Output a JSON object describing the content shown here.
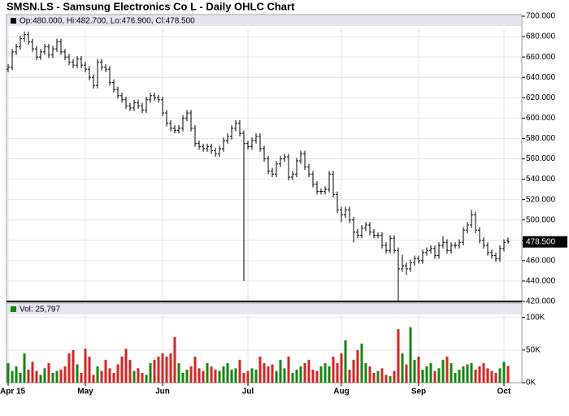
{
  "chart_data": {
    "type": "ohlc",
    "title": "SMSN.LS - Samsung Electronics Co L - Daily OHLC Chart",
    "legend_text": "Op:480.000, Hi:482.700, Lo:476.900, Cl:478.500",
    "categories": [
      "Apr 15",
      null,
      null,
      null,
      null,
      null,
      null,
      null,
      null,
      null,
      null,
      null,
      null,
      null,
      null,
      null,
      null,
      null,
      null,
      "May",
      null,
      null,
      null,
      null,
      null,
      null,
      null,
      null,
      null,
      null,
      null,
      null,
      null,
      null,
      null,
      null,
      null,
      null,
      "Jun",
      null,
      null,
      null,
      null,
      null,
      null,
      null,
      null,
      null,
      null,
      null,
      null,
      null,
      null,
      null,
      null,
      null,
      null,
      null,
      null,
      "Jul",
      null,
      null,
      null,
      null,
      null,
      null,
      null,
      null,
      null,
      null,
      null,
      null,
      null,
      null,
      null,
      null,
      null,
      null,
      null,
      null,
      null,
      null,
      "Aug",
      null,
      null,
      null,
      null,
      null,
      null,
      null,
      null,
      null,
      null,
      null,
      null,
      null,
      null,
      null,
      null,
      null,
      null,
      "Sep",
      null,
      null,
      null,
      null,
      null,
      null,
      null,
      null,
      null,
      null,
      null,
      null,
      null,
      null,
      null,
      null,
      null,
      null,
      null,
      null,
      "Oct",
      null
    ],
    "open": [
      648,
      650,
      665,
      670,
      678,
      682,
      675,
      668,
      660,
      665,
      670,
      662,
      668,
      675,
      665,
      660,
      655,
      652,
      658,
      652,
      648,
      640,
      632,
      655,
      650,
      648,
      635,
      628,
      622,
      618,
      612,
      610,
      615,
      612,
      608,
      618,
      622,
      620,
      618,
      605,
      595,
      590,
      588,
      590,
      600,
      605,
      590,
      575,
      572,
      570,
      572,
      568,
      565,
      570,
      578,
      582,
      590,
      595,
      585,
      575,
      572,
      578,
      582,
      570,
      560,
      548,
      545,
      555,
      560,
      562,
      542,
      545,
      558,
      565,
      552,
      545,
      535,
      528,
      528,
      530,
      545,
      525,
      510,
      505,
      510,
      500,
      488,
      485,
      492,
      495,
      488,
      485,
      485,
      475,
      470,
      482,
      470,
      452,
      455,
      452,
      458,
      462,
      460,
      468,
      470,
      472,
      465,
      475,
      478,
      470,
      475,
      475,
      478,
      490,
      495,
      505,
      490,
      480,
      475,
      468,
      465,
      462,
      472,
      480
    ],
    "high": [
      653,
      668,
      673,
      681,
      685,
      685,
      678,
      671,
      668,
      673,
      673,
      671,
      678,
      678,
      668,
      663,
      658,
      661,
      661,
      655,
      651,
      643,
      658,
      658,
      653,
      651,
      638,
      631,
      625,
      621,
      615,
      618,
      618,
      615,
      621,
      625,
      625,
      623,
      621,
      608,
      598,
      593,
      593,
      603,
      608,
      608,
      593,
      578,
      575,
      575,
      575,
      571,
      573,
      581,
      585,
      593,
      598,
      598,
      588,
      578,
      581,
      585,
      585,
      573,
      563,
      551,
      558,
      563,
      565,
      565,
      548,
      561,
      568,
      568,
      555,
      548,
      538,
      531,
      533,
      548,
      548,
      528,
      513,
      513,
      513,
      503,
      491,
      495,
      498,
      498,
      491,
      488,
      488,
      478,
      485,
      485,
      473,
      466,
      458,
      461,
      465,
      465,
      471,
      473,
      475,
      475,
      478,
      484,
      481,
      478,
      478,
      481,
      493,
      498,
      510,
      508,
      493,
      483,
      478,
      471,
      468,
      475,
      481,
      482.7
    ],
    "low": [
      645,
      647,
      662,
      667,
      675,
      672,
      665,
      657,
      657,
      662,
      659,
      659,
      665,
      662,
      657,
      652,
      649,
      649,
      649,
      645,
      637,
      629,
      629,
      647,
      645,
      632,
      625,
      619,
      615,
      609,
      607,
      607,
      609,
      605,
      605,
      615,
      617,
      615,
      602,
      592,
      587,
      585,
      585,
      587,
      597,
      587,
      572,
      569,
      567,
      567,
      565,
      562,
      562,
      567,
      575,
      579,
      587,
      582,
      440,
      569,
      569,
      575,
      567,
      557,
      545,
      542,
      542,
      552,
      557,
      539,
      539,
      542,
      555,
      549,
      542,
      532,
      525,
      525,
      525,
      527,
      522,
      507,
      498,
      502,
      497,
      478,
      482,
      482,
      489,
      485,
      482,
      482,
      472,
      467,
      467,
      467,
      420,
      449,
      446,
      449,
      455,
      457,
      457,
      465,
      467,
      462,
      462,
      472,
      467,
      467,
      472,
      472,
      475,
      487,
      492,
      487,
      477,
      472,
      465,
      462,
      459,
      459,
      469,
      476.9
    ],
    "close": [
      650,
      665,
      670,
      678,
      682,
      675,
      668,
      660,
      665,
      670,
      662,
      668,
      675,
      665,
      660,
      655,
      652,
      658,
      652,
      648,
      640,
      632,
      655,
      650,
      648,
      635,
      628,
      622,
      618,
      612,
      610,
      615,
      612,
      608,
      618,
      622,
      620,
      618,
      605,
      595,
      590,
      588,
      590,
      600,
      605,
      590,
      575,
      572,
      570,
      572,
      568,
      565,
      570,
      578,
      582,
      590,
      595,
      585,
      575,
      572,
      578,
      582,
      570,
      560,
      548,
      545,
      555,
      560,
      562,
      542,
      545,
      558,
      565,
      552,
      545,
      535,
      528,
      528,
      530,
      545,
      525,
      510,
      505,
      510,
      500,
      488,
      485,
      492,
      495,
      488,
      485,
      485,
      475,
      470,
      482,
      470,
      452,
      455,
      452,
      458,
      462,
      460,
      468,
      470,
      472,
      465,
      475,
      478,
      470,
      475,
      475,
      478,
      490,
      495,
      505,
      490,
      480,
      475,
      468,
      465,
      462,
      472,
      478,
      478.5
    ],
    "color": "#000000",
    "ylim": [
      420,
      700
    ],
    "yticks": [
      {
        "value": 420,
        "label": "420.000"
      },
      {
        "value": 440,
        "label": "440.000"
      },
      {
        "value": 460,
        "label": "460.000"
      },
      {
        "value": 480,
        "label": "480.000"
      },
      {
        "value": 500,
        "label": "500.000"
      },
      {
        "value": 520,
        "label": "520.000"
      },
      {
        "value": 540,
        "label": "540.000"
      },
      {
        "value": 560,
        "label": "560.000"
      },
      {
        "value": 580,
        "label": "580.000"
      },
      {
        "value": 600,
        "label": "600.000"
      },
      {
        "value": 620,
        "label": "620.000"
      },
      {
        "value": 640,
        "label": "640.000"
      },
      {
        "value": 660,
        "label": "660.000"
      },
      {
        "value": 680,
        "label": "680.000"
      },
      {
        "value": 700,
        "label": "700.000"
      }
    ],
    "last_label": {
      "value": 478.5,
      "label": "478.500"
    },
    "grid": true,
    "volume": {
      "label": "Vol: 25,797",
      "up_color": "#118811",
      "down_color": "#dd2222",
      "ylim": [
        0,
        122000
      ],
      "yticks": [
        {
          "value": 0,
          "label": "0K"
        },
        {
          "value": 50000,
          "label": "50K"
        },
        {
          "value": 100000,
          "label": "100K"
        }
      ],
      "values": [
        30000,
        18000,
        25000,
        15000,
        45000,
        20000,
        32000,
        18000,
        12000,
        22000,
        30000,
        15000,
        18000,
        20000,
        25000,
        45000,
        50000,
        28000,
        15000,
        52000,
        40000,
        12000,
        25000,
        18000,
        35000,
        22000,
        15000,
        28000,
        40000,
        52000,
        35000,
        18000,
        22000,
        15000,
        12000,
        30000,
        35000,
        40000,
        45000,
        40000,
        45000,
        70000,
        30000,
        15000,
        20000,
        25000,
        40000,
        22000,
        18000,
        30000,
        25000,
        20000,
        18000,
        25000,
        30000,
        20000,
        22000,
        35000,
        15000,
        18000,
        22000,
        20000,
        40000,
        30000,
        25000,
        28000,
        18000,
        35000,
        22000,
        40000,
        15000,
        20000,
        25000,
        30000,
        35000,
        20000,
        18000,
        25000,
        30000,
        25000,
        40000,
        30000,
        45000,
        65000,
        20000,
        35000,
        50000,
        60000,
        30000,
        25000,
        15000,
        18000,
        22000,
        12000,
        10000,
        18000,
        82000,
        45000,
        28000,
        85000,
        35000,
        40000,
        20000,
        25000,
        30000,
        18000,
        22000,
        35000,
        40000,
        30000,
        15000,
        20000,
        25000,
        28000,
        30000,
        20000,
        25000,
        30000,
        22000,
        18000,
        15000,
        22000,
        32000,
        25797
      ]
    }
  }
}
